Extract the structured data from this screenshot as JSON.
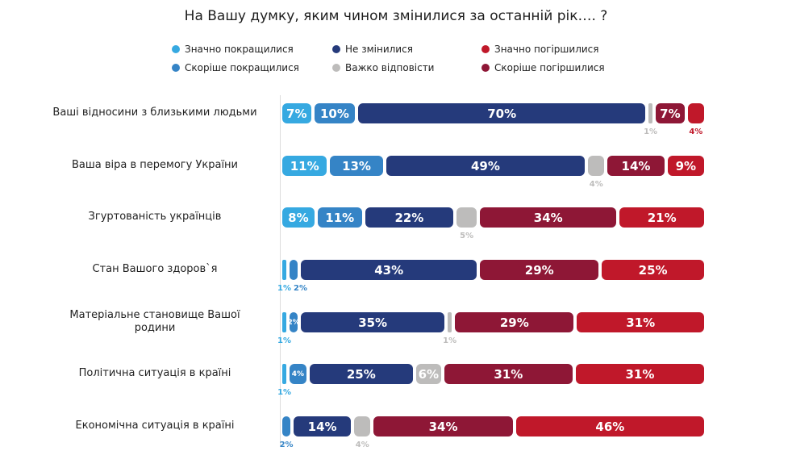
{
  "chart_data": {
    "type": "bar",
    "orientation": "horizontal-stacked",
    "title": "На Вашу думку, яким чином змінилися за останній рік…. ?",
    "legend_placement": "top",
    "series": [
      {
        "name": "Значно покращилися",
        "color": "#36a9e1",
        "values": [
          7,
          11,
          8,
          1,
          1,
          1,
          0
        ]
      },
      {
        "name": "Скоріше покращилися",
        "color": "#3584c6",
        "values": [
          10,
          13,
          11,
          2,
          2,
          4,
          2
        ]
      },
      {
        "name": "Не змінилися",
        "color": "#253a7b",
        "values": [
          70,
          49,
          22,
          43,
          35,
          25,
          14
        ]
      },
      {
        "name": "Важко відповісти",
        "color": "#bdbcbb",
        "values": [
          1,
          4,
          5,
          0,
          1,
          6,
          4
        ]
      },
      {
        "name": "Скоріше погіршилися",
        "color": "#8e1736",
        "values": [
          7,
          14,
          34,
          29,
          29,
          31,
          34
        ]
      },
      {
        "name": "Значно погіршилися",
        "color": "#c0182a",
        "values": [
          4,
          9,
          21,
          25,
          31,
          31,
          46
        ]
      }
    ],
    "categories": [
      "Ваші відносини з близькими людьми",
      "Ваша віра в перемогу України",
      "Згуртованість українців",
      "Стан Вашого здоров`я",
      "Матеріальне становище Вашої родини",
      "Політична ситуація в країні",
      "Економічна ситуація в країні"
    ],
    "label_outside": [
      [
        3,
        5
      ],
      [
        3
      ],
      [
        3
      ],
      [
        0,
        1
      ],
      [
        0,
        3
      ],
      [
        0
      ],
      [
        1,
        3
      ]
    ],
    "value_suffix": "%"
  },
  "legend_layout": [
    [
      0,
      2,
      5
    ],
    [
      1,
      3,
      4
    ]
  ]
}
